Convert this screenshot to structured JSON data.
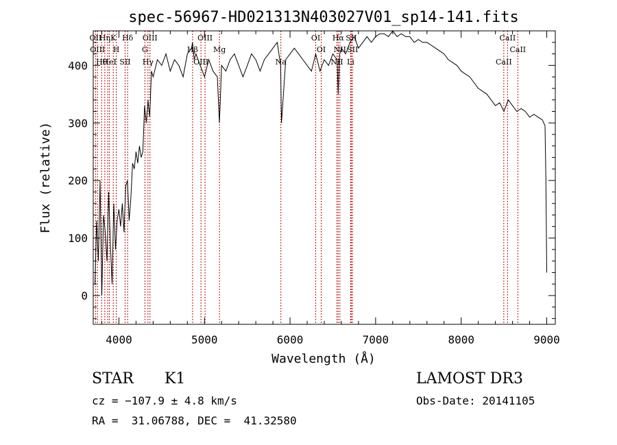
{
  "chart_data": {
    "type": "line",
    "title": "spec-56967-HD021313N403027V01_sp14-141.fits",
    "xlabel": "Wavelength (Å)",
    "ylabel": "Flux (relative)",
    "xlim": [
      3700,
      9100
    ],
    "ylim": [
      -50,
      460
    ],
    "x_ticks": [
      4000,
      5000,
      6000,
      7000,
      8000,
      9000
    ],
    "y_ticks": [
      0,
      100,
      200,
      300,
      400
    ],
    "x_minor_step": 200,
    "y_minor_step": 20,
    "grid": false,
    "series": [
      {
        "x": [
          3720,
          3740,
          3760,
          3780,
          3800,
          3820,
          3840,
          3860,
          3880,
          3900,
          3920,
          3940,
          3960,
          3980,
          4000,
          4020,
          4040,
          4060,
          4080,
          4100,
          4120,
          4140,
          4160,
          4180,
          4200,
          4220,
          4240,
          4260,
          4280,
          4300,
          4320,
          4340,
          4360,
          4380,
          4400,
          4450,
          4500,
          4550,
          4600,
          4650,
          4700,
          4750,
          4800,
          4850,
          4860,
          4880,
          4900,
          4950,
          5000,
          5050,
          5100,
          5150,
          5175,
          5200,
          5250,
          5300,
          5350,
          5400,
          5450,
          5500,
          5550,
          5600,
          5650,
          5700,
          5750,
          5800,
          5850,
          5890,
          5900,
          5950,
          6000,
          6050,
          6100,
          6150,
          6200,
          6250,
          6300,
          6350,
          6400,
          6450,
          6500,
          6550,
          6563,
          6580,
          6600,
          6650,
          6700,
          6750,
          6800,
          6850,
          6900,
          6950,
          7000,
          7050,
          7100,
          7150,
          7200,
          7250,
          7300,
          7350,
          7400,
          7450,
          7500,
          7550,
          7600,
          7650,
          7700,
          7750,
          7800,
          7850,
          7900,
          7950,
          8000,
          8050,
          8100,
          8150,
          8200,
          8250,
          8300,
          8350,
          8400,
          8450,
          8500,
          8550,
          8600,
          8650,
          8700,
          8750,
          8800,
          8850,
          8900,
          8950,
          8980,
          8990,
          9000
        ],
        "y": [
          20,
          130,
          60,
          200,
          0,
          140,
          110,
          60,
          180,
          90,
          20,
          160,
          80,
          130,
          150,
          120,
          160,
          110,
          190,
          200,
          130,
          170,
          230,
          220,
          250,
          230,
          260,
          240,
          250,
          330,
          300,
          340,
          310,
          390,
          380,
          410,
          400,
          420,
          390,
          410,
          400,
          380,
          420,
          430,
          440,
          410,
          420,
          400,
          380,
          410,
          390,
          380,
          300,
          400,
          390,
          410,
          420,
          400,
          380,
          400,
          420,
          410,
          390,
          410,
          420,
          430,
          440,
          400,
          300,
          410,
          420,
          430,
          420,
          410,
          400,
          390,
          420,
          390,
          410,
          400,
          420,
          410,
          350,
          420,
          430,
          420,
          440,
          450,
          430,
          440,
          450,
          440,
          450,
          455,
          455,
          450,
          460,
          450,
          455,
          450,
          450,
          440,
          445,
          440,
          440,
          435,
          430,
          425,
          420,
          410,
          405,
          400,
          390,
          385,
          380,
          370,
          360,
          355,
          350,
          340,
          330,
          335,
          320,
          340,
          330,
          320,
          325,
          320,
          310,
          315,
          310,
          305,
          295,
          200,
          40
        ]
      }
    ],
    "line_labels": [
      {
        "wavelength": 3727,
        "label": "OII"
      },
      {
        "wavelength": 3750,
        "label": "OIII"
      },
      {
        "wavelength": 3798,
        "label": "Hθ"
      },
      {
        "wavelength": 3835,
        "label": "Hη"
      },
      {
        "wavelength": 3869,
        "label": ""
      },
      {
        "wavelength": 3889,
        "label": "HeI"
      },
      {
        "wavelength": 3934,
        "label": "K"
      },
      {
        "wavelength": 3969,
        "label": "H"
      },
      {
        "wavelength": 4072,
        "label": "SII"
      },
      {
        "wavelength": 4102,
        "label": "Hδ"
      },
      {
        "wavelength": 4304,
        "label": "G"
      },
      {
        "wavelength": 4340,
        "label": "Hγ"
      },
      {
        "wavelength": 4363,
        "label": "OIII"
      },
      {
        "wavelength": 4861,
        "label": "Hβ"
      },
      {
        "wavelength": 4959,
        "label": "OIII"
      },
      {
        "wavelength": 5007,
        "label": "OIII"
      },
      {
        "wavelength": 5175,
        "label": "Mg"
      },
      {
        "wavelength": 5893,
        "label": "Na"
      },
      {
        "wavelength": 6300,
        "label": "OI"
      },
      {
        "wavelength": 6364,
        "label": "OI"
      },
      {
        "wavelength": 6548,
        "label": "NII"
      },
      {
        "wavelength": 6563,
        "label": "Hα"
      },
      {
        "wavelength": 6583,
        "label": "NII"
      },
      {
        "wavelength": 6708,
        "label": "Li"
      },
      {
        "wavelength": 6716,
        "label": "SII"
      },
      {
        "wavelength": 6731,
        "label": "SII"
      },
      {
        "wavelength": 8498,
        "label": "CaII"
      },
      {
        "wavelength": 8542,
        "label": "CaII"
      },
      {
        "wavelength": 8662,
        "label": "CaII"
      }
    ]
  },
  "info": {
    "object_class": "STAR",
    "subclass": "K1",
    "survey": "LAMOST DR3",
    "cz": "cz = −107.9 ± 4.8 km/s",
    "obs_date": "Obs-Date: 20141105",
    "coords": "RA =  31.06788, DEC =  41.32580"
  }
}
